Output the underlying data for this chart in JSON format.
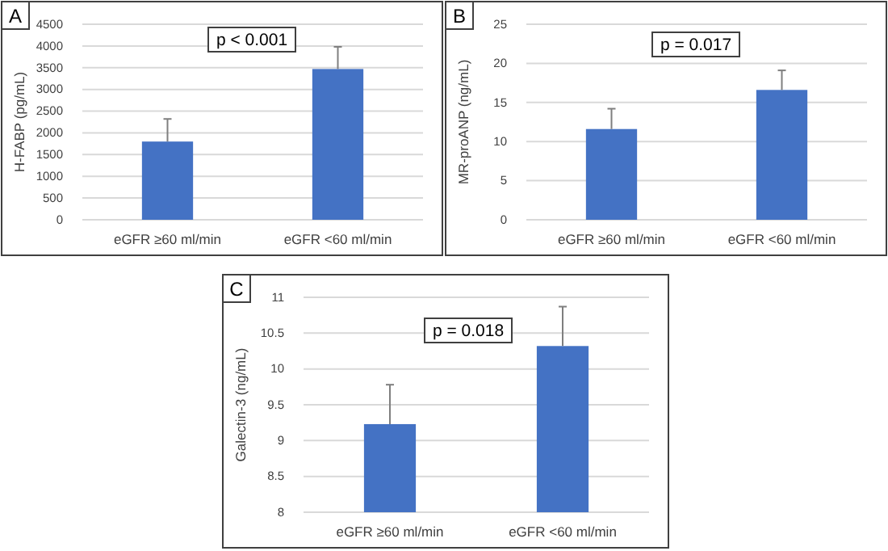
{
  "chart_data": [
    {
      "type": "bar",
      "title": "A",
      "ylabel": "H-FABP (pg/mL)",
      "categories": [
        "eGFR ≥60 ml/min",
        "eGFR <60 ml/min"
      ],
      "values": [
        1800,
        3470
      ],
      "errors": [
        [
          1800,
          2320
        ],
        [
          3470,
          3980
        ]
      ],
      "color": "#4472c4",
      "ylim": [
        0,
        4500
      ],
      "yticks": [
        0,
        500,
        1000,
        1500,
        2000,
        2500,
        3000,
        3500,
        4000,
        4500
      ],
      "grid": "y",
      "annotations": [
        "p < 0.001"
      ]
    },
    {
      "type": "bar",
      "title": "B",
      "ylabel": "MR-proANP (ng/mL)",
      "categories": [
        "eGFR ≥60 ml/min",
        "eGFR <60 ml/min"
      ],
      "values": [
        11.6,
        16.6
      ],
      "errors": [
        [
          11.6,
          14.2
        ],
        [
          16.6,
          19.1
        ]
      ],
      "color": "#4472c4",
      "ylim": [
        0,
        25
      ],
      "yticks": [
        0,
        5,
        10,
        15,
        20,
        25
      ],
      "grid": "y",
      "annotations": [
        "p = 0.017"
      ]
    },
    {
      "type": "bar",
      "title": "C",
      "ylabel": "Galectin-3 (ng/mL)",
      "categories": [
        "eGFR ≥60 ml/min",
        "eGFR <60 ml/min"
      ],
      "values": [
        9.23,
        10.32
      ],
      "errors": [
        [
          9.23,
          9.78
        ],
        [
          10.32,
          10.87
        ]
      ],
      "color": "#4472c4",
      "ylim": [
        8,
        11
      ],
      "yticks": [
        8,
        8.5,
        9,
        9.5,
        10,
        10.5,
        11
      ],
      "grid": "y",
      "annotations": [
        "p = 0.018"
      ]
    }
  ]
}
